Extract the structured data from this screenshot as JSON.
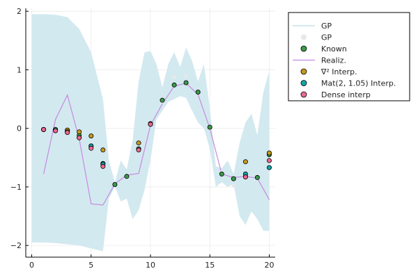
{
  "chart_data": {
    "type": "scatter",
    "xlim": [
      -0.5,
      20.5
    ],
    "ylim": [
      -2.2,
      2.05
    ],
    "xticks": [
      0,
      5,
      10,
      15,
      20
    ],
    "yticks": [
      -2,
      -1,
      0,
      1,
      2
    ],
    "grid": true,
    "legend_position": "top-right-outside",
    "band": {
      "name": "GP",
      "color": "#d3e9f0",
      "x": [
        0,
        1,
        2,
        3,
        4,
        5,
        6,
        6.5,
        7,
        7.5,
        8,
        8.5,
        9,
        9.5,
        10,
        10.5,
        11,
        11.5,
        12,
        12.5,
        13,
        13.5,
        14,
        14.5,
        15,
        15.5,
        16,
        16.5,
        17,
        17.5,
        18,
        18.5,
        19,
        19.5,
        20
      ],
      "upper": [
        1.95,
        1.95,
        1.94,
        1.9,
        1.7,
        1.3,
        0.5,
        -0.55,
        -0.92,
        -0.55,
        -0.7,
        -0.2,
        0.8,
        1.3,
        1.32,
        1.1,
        0.7,
        1.1,
        1.3,
        1.05,
        1.38,
        1.15,
        0.8,
        1.1,
        0.35,
        -0.65,
        -0.68,
        -0.55,
        -0.78,
        -0.25,
        0.1,
        0.25,
        -0.12,
        0.62,
        0.98
      ],
      "lower": [
        -1.95,
        -1.95,
        -1.96,
        -1.98,
        -2.0,
        -2.05,
        -2.1,
        -1.2,
        -1.0,
        -1.25,
        -1.2,
        -1.55,
        -1.4,
        -1.05,
        -0.55,
        0.15,
        0.3,
        0.45,
        0.5,
        0.55,
        0.52,
        0.3,
        0.1,
        0.0,
        -0.35,
        -1.0,
        -0.92,
        -1.0,
        -0.95,
        -1.5,
        -1.65,
        -1.42,
        -1.55,
        -1.75,
        -1.75
      ]
    },
    "series": [
      {
        "name": "GP",
        "kind": "scatter",
        "color": "#e8e8e8",
        "stroke": "#e8e8e8",
        "x": [
          7,
          8,
          9,
          10,
          11,
          12,
          13,
          14,
          15,
          16,
          17,
          18,
          19
        ],
        "y": [
          -0.95,
          -0.82,
          -0.3,
          0.1,
          0.45,
          0.88,
          0.9,
          0.62,
          0.0,
          -0.75,
          -0.98,
          -0.8,
          -0.82
        ]
      },
      {
        "name": "Known",
        "kind": "scatter",
        "color": "#3a9a4a",
        "x": [
          1,
          2,
          3,
          4,
          5,
          6,
          7,
          8,
          9,
          10,
          11,
          12,
          13,
          14,
          15,
          16,
          17,
          18,
          19,
          20
        ],
        "y": [
          -0.02,
          -0.02,
          -0.03,
          -0.12,
          -0.3,
          -0.6,
          -0.96,
          -0.82,
          -0.35,
          0.07,
          0.48,
          0.74,
          0.78,
          0.62,
          0.02,
          -0.78,
          -0.86,
          -0.82,
          -0.84,
          -0.45
        ]
      },
      {
        "name": "Realiz.",
        "kind": "line",
        "color": "#c58ae0",
        "x": [
          1,
          2,
          3,
          4,
          5,
          6,
          7,
          8,
          9,
          10,
          11,
          12,
          13,
          14,
          15,
          16,
          17,
          18,
          19,
          20
        ],
        "y": [
          -0.78,
          0.15,
          0.57,
          -0.18,
          -1.29,
          -1.31,
          -0.95,
          -0.8,
          -0.77,
          0.05,
          0.42,
          0.72,
          0.77,
          0.58,
          0.0,
          -0.78,
          -0.84,
          -0.82,
          -0.85,
          -1.22
        ]
      },
      {
        "name": "∇² Interp.",
        "kind": "scatter",
        "color": "#c39a1e",
        "x": [
          1,
          2,
          3,
          4,
          5,
          6,
          9,
          10,
          18,
          20
        ],
        "y": [
          -0.02,
          -0.03,
          -0.03,
          -0.06,
          -0.13,
          -0.37,
          -0.25,
          0.07,
          -0.57,
          -0.42
        ]
      },
      {
        "name": "Mat(2, 1.05) Interp.",
        "kind": "scatter",
        "color": "#16a4a8",
        "x": [
          1,
          2,
          3,
          4,
          5,
          6,
          9,
          10,
          18,
          20
        ],
        "y": [
          -0.02,
          -0.02,
          -0.06,
          -0.16,
          -0.3,
          -0.61,
          -0.35,
          0.08,
          -0.78,
          -0.67
        ]
      },
      {
        "name": "Dense interp",
        "kind": "scatter",
        "color": "#ea6a8e",
        "x": [
          1,
          2,
          3,
          4,
          5,
          6,
          9,
          10,
          18,
          20
        ],
        "y": [
          -0.02,
          -0.04,
          -0.07,
          -0.16,
          -0.34,
          -0.65,
          -0.37,
          0.07,
          -0.83,
          -0.55
        ]
      }
    ],
    "legend": [
      {
        "label": "GP",
        "marker": "band",
        "color": "#d3e9f0"
      },
      {
        "label": "GP",
        "marker": "dot",
        "color": "#e8e8e8"
      },
      {
        "label": "Known",
        "marker": "dot",
        "color": "#3a9a4a"
      },
      {
        "label": "Realiz.",
        "marker": "line",
        "color": "#c58ae0"
      },
      {
        "label": "∇² Interp.",
        "marker": "dot",
        "color": "#c39a1e"
      },
      {
        "label": "Mat(2, 1.05) Interp.",
        "marker": "dot",
        "color": "#16a4a8"
      },
      {
        "label": "Dense interp",
        "marker": "dot",
        "color": "#ea6a8e"
      }
    ]
  }
}
